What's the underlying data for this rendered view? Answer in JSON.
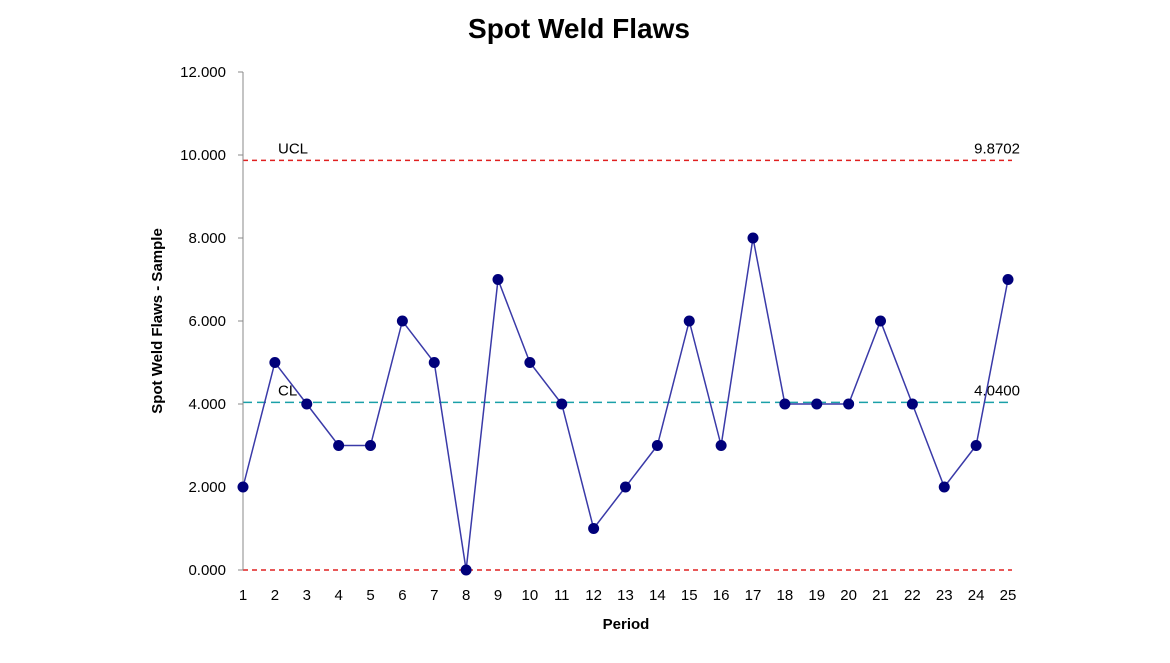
{
  "chart_data": {
    "type": "line",
    "title": "Spot Weld Flaws",
    "xlabel": "Period",
    "ylabel": "Spot Weld Flaws - Sample",
    "x": [
      1,
      2,
      3,
      4,
      5,
      6,
      7,
      8,
      9,
      10,
      11,
      12,
      13,
      14,
      15,
      16,
      17,
      18,
      19,
      20,
      21,
      22,
      23,
      24,
      25
    ],
    "series": [
      {
        "values": [
          2,
          5,
          4,
          3,
          3,
          6,
          5,
          0,
          7,
          5,
          4,
          1,
          2,
          3,
          6,
          3,
          8,
          4,
          4,
          4,
          6,
          4,
          2,
          3,
          7
        ],
        "color": "#3a3aa8",
        "marker_color": "#00007a"
      }
    ],
    "xlim": [
      1,
      25
    ],
    "ylim": [
      0,
      12
    ],
    "y_ticks": [
      {
        "value": 0,
        "label": "0.000"
      },
      {
        "value": 2,
        "label": "2.000"
      },
      {
        "value": 4,
        "label": "4.000"
      },
      {
        "value": 6,
        "label": "6.000"
      },
      {
        "value": 8,
        "label": "8.000"
      },
      {
        "value": 10,
        "label": "10.000"
      },
      {
        "value": 12,
        "label": "12.000"
      }
    ],
    "reference_lines": [
      {
        "name": "UCL",
        "value": 9.8702,
        "value_label": "9.8702",
        "color": "#e02020",
        "style": "dashed"
      },
      {
        "name": "CL",
        "value": 4.04,
        "value_label": "4.0400",
        "color": "#1aa0a8",
        "style": "dashed"
      },
      {
        "name": "",
        "value": 0,
        "value_label": "",
        "color": "#e02020",
        "style": "dashed"
      }
    ],
    "grid": false,
    "legend": "none"
  }
}
